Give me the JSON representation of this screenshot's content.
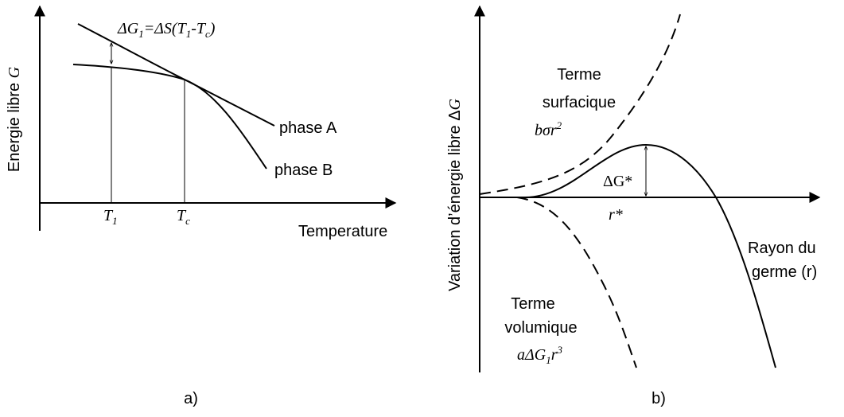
{
  "panel_a": {
    "y_axis_label": [
      "Energie libre ",
      "G"
    ],
    "formula": [
      "ΔG",
      "1",
      "=ΔS(T",
      "1",
      "-T",
      "c",
      ")"
    ],
    "phase_a": "phase A",
    "phase_b": "phase B",
    "t1": [
      "T",
      "1"
    ],
    "tc": [
      "T",
      "c"
    ],
    "x_axis_label": "Temperature",
    "caption": "a)"
  },
  "panel_b": {
    "y_axis_label": [
      "Variation d’énergie libre Δ",
      "G"
    ],
    "surface_term": [
      "Terme",
      "surfacique"
    ],
    "surface_formula": [
      "bσr",
      "2"
    ],
    "delta_g_star": "ΔG*",
    "r_star": "r*",
    "x_axis_label": [
      "Rayon du",
      "germe (r)"
    ],
    "volume_term": [
      "Terme",
      "volumique"
    ],
    "volume_formula": [
      "aΔG",
      "1",
      "r",
      "3"
    ],
    "caption": "b)"
  }
}
